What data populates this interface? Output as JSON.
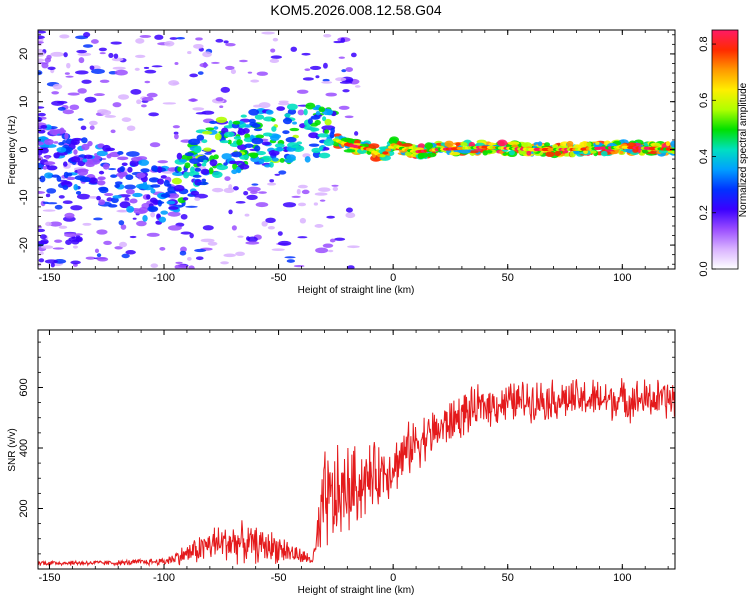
{
  "figure_title": "KOM5.2026.008.12.58.G04",
  "colors": {
    "snr_line": "#e41a1c",
    "axis": "#000000",
    "colormap": [
      "#ffffff",
      "#d9b3ff",
      "#9a4dff",
      "#3a00ff",
      "#0033ff",
      "#00a0ff",
      "#00e0c0",
      "#00e000",
      "#b0ff00",
      "#ffee00",
      "#ff9900",
      "#ff2a00",
      "#ff1a66"
    ]
  },
  "chart_data": [
    {
      "type": "heatmap",
      "title": "",
      "xlabel": "Height of straight line (km)",
      "ylabel": "Frequency (Hz)",
      "xlim": [
        -155,
        123
      ],
      "ylim": [
        -25,
        25
      ],
      "xticks": [
        -150,
        -100,
        -50,
        0,
        50,
        100
      ],
      "xtick_labels": [
        "-150",
        "-100",
        "-50",
        "0",
        "50",
        "100"
      ],
      "yticks": [
        -20,
        -10,
        0,
        10,
        20
      ],
      "ytick_labels": [
        "-20",
        "-10",
        "0",
        "10",
        "20"
      ],
      "colorbar": {
        "label": "Normalized spectral amplitude",
        "range": [
          0,
          0.85
        ],
        "ticks": [
          0.0,
          0.2,
          0.4,
          0.6,
          0.8
        ],
        "tick_labels": [
          "0.0",
          "0.2",
          "0.4",
          "0.6",
          "0.8"
        ]
      },
      "ridge": {
        "description_points_x": [
          -155,
          -100,
          -90,
          -80,
          -60,
          -40,
          -30,
          -20,
          -10,
          -5,
          0,
          5,
          10,
          20,
          40,
          60,
          80,
          100,
          123
        ],
        "description_points_y": [
          0,
          -10,
          -5,
          0,
          2,
          4,
          3,
          1,
          0,
          -1.5,
          1,
          0,
          -0.5,
          0,
          0.5,
          0,
          0,
          0.5,
          0
        ],
        "peak_amplitude_region_x": [
          -25,
          123
        ]
      }
    },
    {
      "type": "line",
      "title": "",
      "xlabel": "Height of straight line (km)",
      "ylabel": "SNR (v/v)",
      "xlim": [
        -155,
        123
      ],
      "ylim": [
        0,
        790
      ],
      "xticks": [
        -150,
        -100,
        -50,
        0,
        50,
        100
      ],
      "xtick_labels": [
        "-150",
        "-100",
        "-50",
        "0",
        "50",
        "100"
      ],
      "yticks": [
        200,
        400,
        600
      ],
      "ytick_labels": [
        "200",
        "400",
        "600"
      ],
      "series": [
        {
          "name": "SNR",
          "envelope_x": [
            -155,
            -120,
            -100,
            -90,
            -80,
            -70,
            -60,
            -50,
            -40,
            -35,
            -32,
            -30,
            -25,
            -20,
            -10,
            0,
            10,
            20,
            30,
            40,
            50,
            60,
            70,
            80,
            90,
            100,
            110,
            123
          ],
          "envelope_mean": [
            20,
            20,
            25,
            50,
            80,
            90,
            80,
            70,
            40,
            30,
            120,
            220,
            230,
            260,
            300,
            340,
            420,
            460,
            510,
            540,
            550,
            560,
            560,
            560,
            560,
            560,
            560,
            560
          ],
          "envelope_amp": [
            10,
            10,
            15,
            40,
            70,
            80,
            70,
            60,
            30,
            20,
            160,
            200,
            200,
            180,
            130,
            110,
            100,
            90,
            90,
            80,
            80,
            80,
            80,
            80,
            80,
            80,
            80,
            80
          ]
        }
      ]
    }
  ]
}
